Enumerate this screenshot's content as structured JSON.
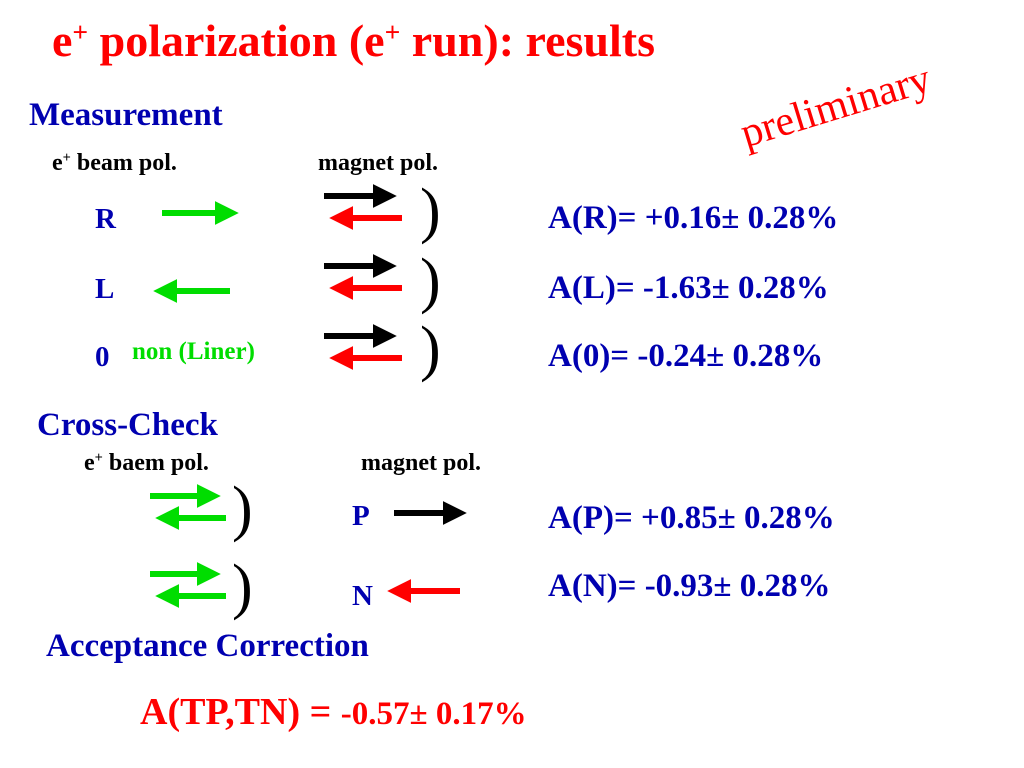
{
  "title": {
    "base": "e",
    "sup": "+",
    "rest1": " polarization (e",
    "sup2": "+",
    "rest2": " run): results"
  },
  "preliminary": "preliminary",
  "measurement": {
    "heading": "Measurement",
    "col1": {
      "base": "e",
      "sup": "+",
      "rest": " beam pol."
    },
    "col2": "magnet pol.",
    "rows": [
      {
        "label": "R",
        "result": "A(R)= +0.16± 0.28%"
      },
      {
        "label": "L",
        "result": "A(L)= -1.63± 0.28%"
      },
      {
        "label": "0",
        "note": "non (Liner)",
        "result": "A(0)= -0.24± 0.28%"
      }
    ]
  },
  "cross_check": {
    "heading": "Cross-Check",
    "col1": {
      "base": "e",
      "sup": "+",
      "rest": " baem pol."
    },
    "col2": "magnet pol.",
    "rows": [
      {
        "label": "P",
        "result": "A(P)= +0.85± 0.28%"
      },
      {
        "label": "N",
        "result": "A(N)= -0.93± 0.28%"
      }
    ]
  },
  "acceptance": {
    "heading": "Acceptance Correction",
    "formula_label": "A(TP,TN) = ",
    "formula_value": "-0.57± 0.17%"
  },
  "colors": {
    "title": "#ff0000",
    "text": "#0000b0",
    "green": "#00dd00",
    "red": "#ff0000",
    "black": "#000000"
  },
  "icons": [
    "right-arrow-icon",
    "left-arrow-icon",
    "bracket-icon"
  ]
}
